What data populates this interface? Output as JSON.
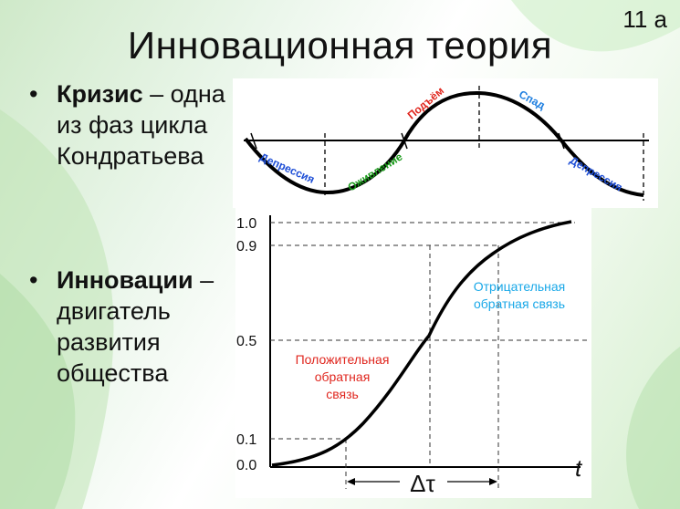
{
  "slide_number": "11 а",
  "title": "Инновационная теория",
  "bullets": [
    {
      "term": "Кризис",
      "dash": " –",
      "rest": "одна из фаз цикла Кондратьева"
    },
    {
      "term": "Инновации",
      "dash": " –",
      "rest": "двигатель развития общества"
    }
  ],
  "wave_diagram": {
    "phases": [
      {
        "label": "Депрессия",
        "color": "#1f4fd6"
      },
      {
        "label": "Оживление",
        "color": "#1a9a1a"
      },
      {
        "label": "Подъём",
        "color": "#e0261e"
      },
      {
        "label": "Спад",
        "color": "#1f7fe0"
      },
      {
        "label": "Депрессия",
        "color": "#1f4fd6"
      }
    ]
  },
  "s_curve": {
    "y_ticks": [
      "1.0",
      "0.9",
      "0.5",
      "0.1",
      "0.0"
    ],
    "x_axis_label": "t",
    "interval_label": "Δτ",
    "positive_feedback": {
      "line1": "Положительная",
      "line2": "обратная",
      "line3": "связь",
      "color": "#e0261e"
    },
    "negative_feedback": {
      "line1": "Отрицательная",
      "line2": "обратная связь",
      "color": "#19a8e8"
    }
  }
}
